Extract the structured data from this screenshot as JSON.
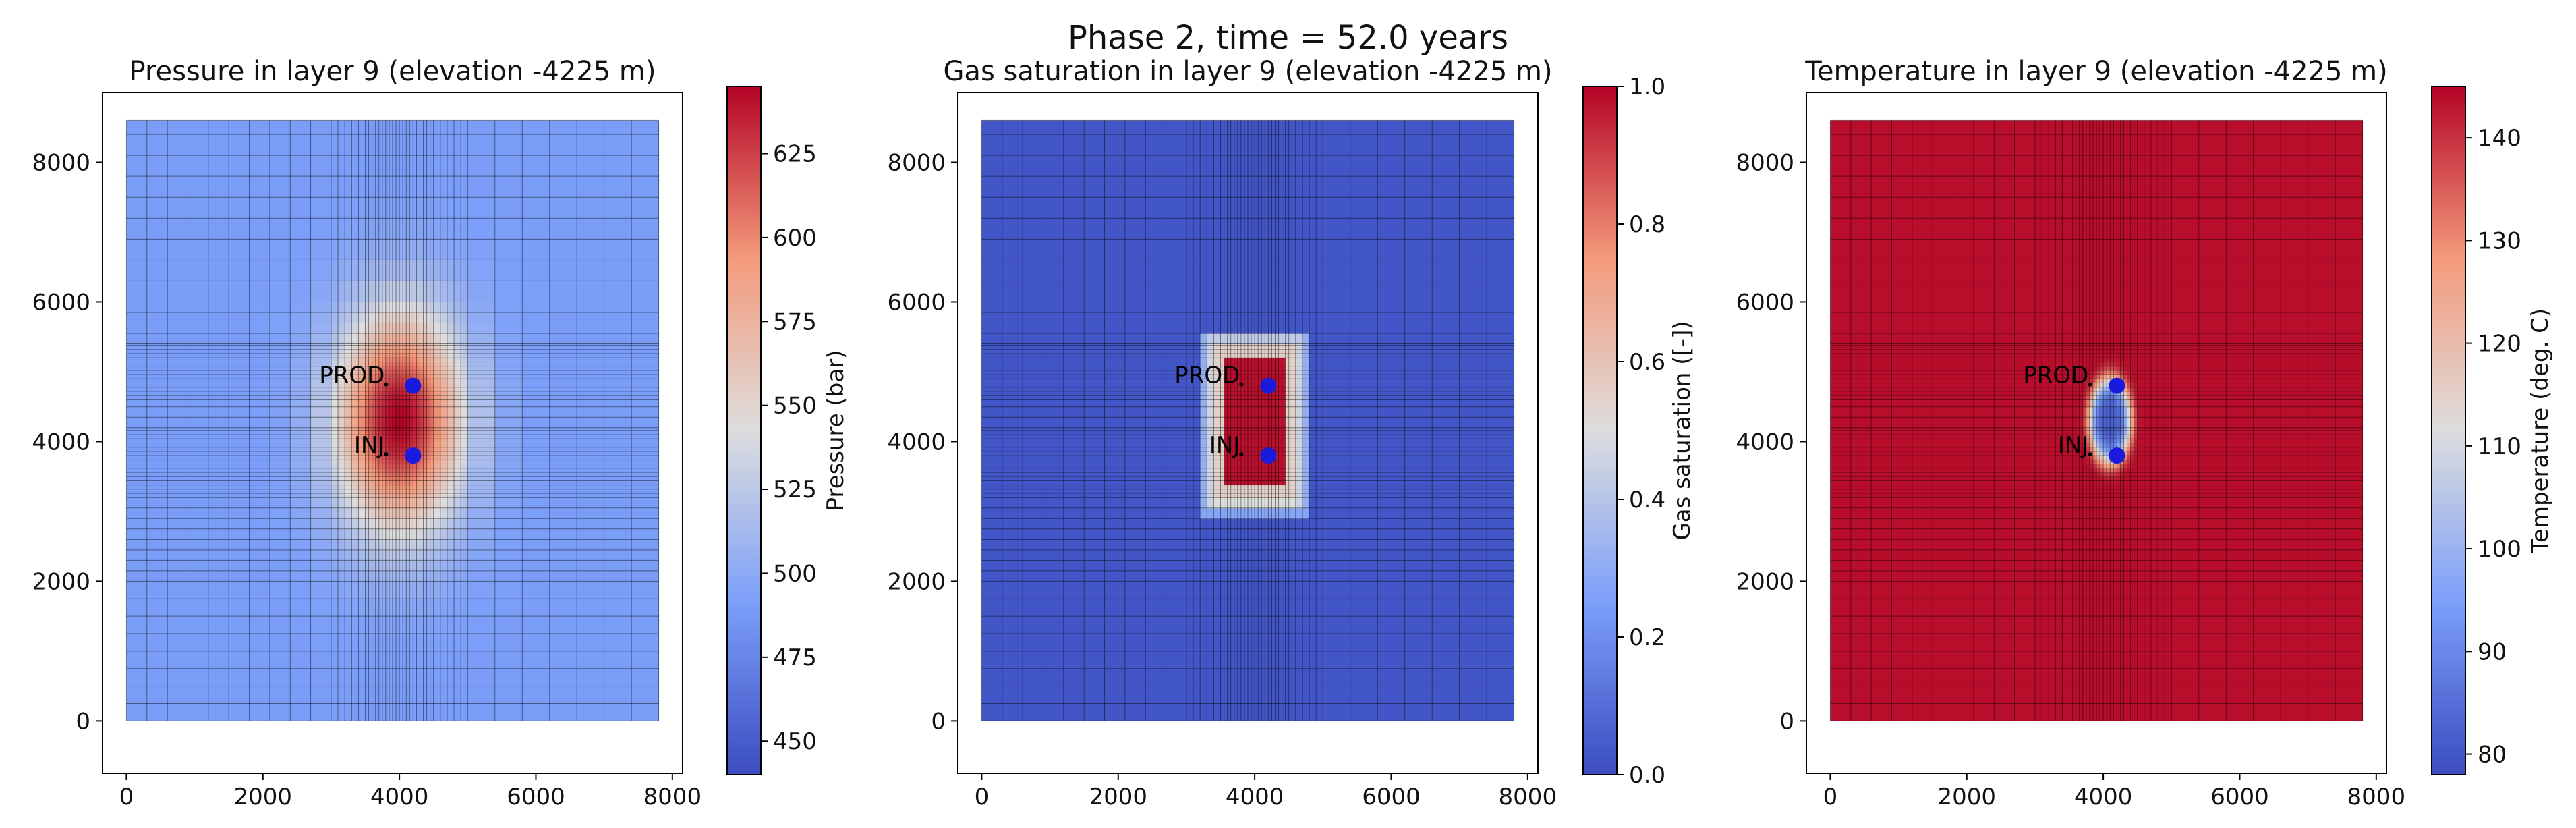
{
  "figure": {
    "suptitle": "Phase 2, time = 52.0 years"
  },
  "chart_data": [
    {
      "type": "heatmap",
      "title": "Pressure  in layer  9 (elevation -4225 m)",
      "xlim": [
        -350,
        8150
      ],
      "ylim": [
        -750,
        9000
      ],
      "x_ticks": [
        0,
        2000,
        4000,
        6000,
        8000
      ],
      "y_ticks": [
        0,
        2000,
        4000,
        6000,
        8000
      ],
      "x_tick_labels": [
        "0",
        "2000",
        "4000",
        "6000",
        "8000"
      ],
      "y_tick_labels": [
        "0",
        "2000",
        "4000",
        "6000",
        "8000"
      ],
      "domain": {
        "x": [
          0,
          7800
        ],
        "y": [
          0,
          8600
        ]
      },
      "field": {
        "kind": "pressure",
        "background": 490,
        "peak": 645,
        "center": [
          4000,
          4300
        ],
        "sigma": [
          650,
          1100
        ]
      },
      "colorbar": {
        "label": "Pressure  (bar)",
        "range": [
          440,
          645
        ],
        "ticks": [
          450,
          475,
          500,
          525,
          550,
          575,
          600,
          625
        ],
        "tick_labels": [
          "450",
          "475",
          "500",
          "525",
          "550",
          "575",
          "600",
          "625"
        ]
      },
      "wells": [
        {
          "name": "PROD",
          "x": 4200,
          "y": 4800
        },
        {
          "name": "INJ",
          "x": 4200,
          "y": 3800
        }
      ]
    },
    {
      "type": "heatmap",
      "title": "Gas saturation  in layer  9 (elevation -4225 m)",
      "xlim": [
        -350,
        8150
      ],
      "ylim": [
        -750,
        9000
      ],
      "x_ticks": [
        0,
        2000,
        4000,
        6000,
        8000
      ],
      "y_ticks": [
        0,
        2000,
        4000,
        6000,
        8000
      ],
      "x_tick_labels": [
        "0",
        "2000",
        "4000",
        "6000",
        "8000"
      ],
      "y_tick_labels": [
        "0",
        "2000",
        "4000",
        "6000",
        "8000"
      ],
      "domain": {
        "x": [
          0,
          7800
        ],
        "y": [
          0,
          8600
        ]
      },
      "field": {
        "kind": "gas",
        "background": 0.03,
        "inner_value": 0.98,
        "halo_value": 0.55,
        "inner_box": {
          "x": [
            3550,
            4450
          ],
          "y": [
            3400,
            5200
          ]
        },
        "halo_box": {
          "x": [
            3200,
            4800
          ],
          "y": [
            2950,
            5600
          ]
        }
      },
      "colorbar": {
        "label": "Gas saturation  ([-])",
        "range": [
          0,
          1
        ],
        "ticks": [
          0,
          0.2,
          0.4,
          0.6,
          0.8,
          1.0
        ],
        "tick_labels": [
          "0.0",
          "0.2",
          "0.4",
          "0.6",
          "0.8",
          "1.0"
        ]
      },
      "wells": [
        {
          "name": "PROD",
          "x": 4200,
          "y": 4800
        },
        {
          "name": "INJ",
          "x": 4200,
          "y": 3800
        }
      ]
    },
    {
      "type": "heatmap",
      "title": "Temperature  in layer  9 (elevation -4225 m)",
      "xlim": [
        -350,
        8150
      ],
      "ylim": [
        -750,
        9000
      ],
      "x_ticks": [
        0,
        2000,
        4000,
        6000,
        8000
      ],
      "y_ticks": [
        0,
        2000,
        4000,
        6000,
        8000
      ],
      "x_tick_labels": [
        "0",
        "2000",
        "4000",
        "6000",
        "8000"
      ],
      "y_tick_labels": [
        "0",
        "2000",
        "4000",
        "6000",
        "8000"
      ],
      "domain": {
        "x": [
          0,
          7800
        ],
        "y": [
          0,
          8600
        ]
      },
      "field": {
        "kind": "temperature",
        "background": 144,
        "min": 82,
        "center": [
          4100,
          4300
        ],
        "sigma": [
          260,
          520
        ]
      },
      "colorbar": {
        "label": "Temperature  (deg. C)",
        "range": [
          78,
          145
        ],
        "ticks": [
          80,
          90,
          100,
          110,
          120,
          130,
          140
        ],
        "tick_labels": [
          "80",
          "90",
          "100",
          "110",
          "120",
          "130",
          "140"
        ]
      },
      "wells": [
        {
          "name": "PROD",
          "x": 4200,
          "y": 4800
        },
        {
          "name": "INJ",
          "x": 4200,
          "y": 3800
        }
      ]
    }
  ]
}
